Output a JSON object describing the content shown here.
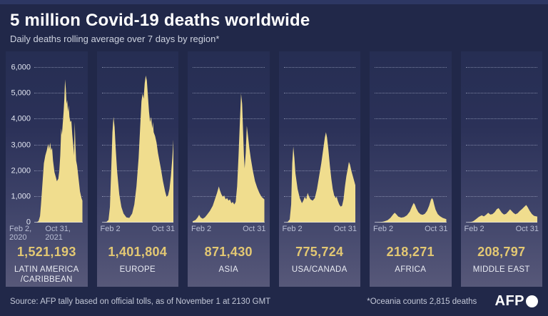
{
  "header": {
    "title": "5 million Covid-19 deaths worldwide",
    "subtitle": "Daily deaths rolling average over 7 days by region*"
  },
  "colors": {
    "background": "#212849",
    "panel_gradient_top": "#262e53",
    "panel_gradient_bottom": "#575879",
    "area_fill": "#f0dd8e",
    "total_gold": "#e3c873",
    "grid_dotted": "#c0c7e0",
    "text_light": "#e9ebf3"
  },
  "axis": {
    "y_ticks": [
      "6,000",
      "5,000",
      "4,000",
      "3,000",
      "2,000",
      "1,000",
      "0"
    ],
    "y_max": 6000
  },
  "footer": {
    "source": "Source: AFP tally based on official tolls, as of November 1 at 2130 GMT",
    "note": "*Oceania counts 2,815 deaths",
    "logo": "AFP"
  },
  "chart_data": {
    "type": "area",
    "title": "5 million Covid-19 deaths worldwide",
    "subtitle": "Daily deaths rolling average over 7 days by region",
    "ylabel": "Daily deaths (7-day rolling average)",
    "ylim": [
      0,
      6000
    ],
    "grid": "horizontal dotted lines every 1,000",
    "legend_position": "none",
    "panels": [
      {
        "region": "LATIN AMERICA /CARIBBEAN",
        "total": "1,521,193",
        "x_start": "Feb 2, 2020",
        "x_end": "Oct 31, 2021",
        "points": [
          [
            0,
            0
          ],
          [
            0.05,
            10
          ],
          [
            0.09,
            60
          ],
          [
            0.12,
            250
          ],
          [
            0.14,
            700
          ],
          [
            0.17,
            1500
          ],
          [
            0.2,
            2300
          ],
          [
            0.23,
            2600
          ],
          [
            0.26,
            2800
          ],
          [
            0.29,
            3050
          ],
          [
            0.31,
            2850
          ],
          [
            0.33,
            3100
          ],
          [
            0.35,
            2800
          ],
          [
            0.37,
            2900
          ],
          [
            0.39,
            2400
          ],
          [
            0.42,
            1950
          ],
          [
            0.45,
            1750
          ],
          [
            0.47,
            1600
          ],
          [
            0.5,
            1700
          ],
          [
            0.52,
            2000
          ],
          [
            0.54,
            2600
          ],
          [
            0.56,
            3650
          ],
          [
            0.575,
            3400
          ],
          [
            0.59,
            3800
          ],
          [
            0.61,
            4300
          ],
          [
            0.625,
            4800
          ],
          [
            0.64,
            5550
          ],
          [
            0.655,
            5200
          ],
          [
            0.67,
            4600
          ],
          [
            0.685,
            4750
          ],
          [
            0.7,
            4300
          ],
          [
            0.715,
            4550
          ],
          [
            0.73,
            4100
          ],
          [
            0.75,
            3900
          ],
          [
            0.77,
            3950
          ],
          [
            0.79,
            3400
          ],
          [
            0.81,
            3000
          ],
          [
            0.825,
            2600
          ],
          [
            0.84,
            3900
          ],
          [
            0.855,
            3000
          ],
          [
            0.87,
            2400
          ],
          [
            0.89,
            2200
          ],
          [
            0.92,
            1700
          ],
          [
            0.95,
            1200
          ],
          [
            0.98,
            950
          ],
          [
            1,
            850
          ]
        ]
      },
      {
        "region": "EUROPE",
        "total": "1,401,804",
        "x_start": "Feb 2",
        "x_end": "Oct 31",
        "points": [
          [
            0,
            0
          ],
          [
            0.06,
            20
          ],
          [
            0.09,
            100
          ],
          [
            0.11,
            600
          ],
          [
            0.13,
            2200
          ],
          [
            0.145,
            3500
          ],
          [
            0.16,
            4100
          ],
          [
            0.175,
            3700
          ],
          [
            0.19,
            2900
          ],
          [
            0.21,
            2000
          ],
          [
            0.24,
            1100
          ],
          [
            0.27,
            600
          ],
          [
            0.3,
            350
          ],
          [
            0.34,
            200
          ],
          [
            0.38,
            180
          ],
          [
            0.42,
            350
          ],
          [
            0.45,
            700
          ],
          [
            0.48,
            1400
          ],
          [
            0.51,
            2500
          ],
          [
            0.53,
            3600
          ],
          [
            0.55,
            4700
          ],
          [
            0.565,
            5000
          ],
          [
            0.58,
            4800
          ],
          [
            0.595,
            5400
          ],
          [
            0.61,
            5700
          ],
          [
            0.625,
            5500
          ],
          [
            0.64,
            4900
          ],
          [
            0.655,
            4300
          ],
          [
            0.67,
            3900
          ],
          [
            0.685,
            4100
          ],
          [
            0.7,
            3650
          ],
          [
            0.71,
            3900
          ],
          [
            0.72,
            3500
          ],
          [
            0.74,
            3350
          ],
          [
            0.76,
            3100
          ],
          [
            0.78,
            2700
          ],
          [
            0.8,
            2400
          ],
          [
            0.82,
            2100
          ],
          [
            0.85,
            1600
          ],
          [
            0.88,
            1200
          ],
          [
            0.9,
            1000
          ],
          [
            0.92,
            1050
          ],
          [
            0.94,
            1300
          ],
          [
            0.96,
            1800
          ],
          [
            0.98,
            2500
          ],
          [
            1,
            3450
          ]
        ]
      },
      {
        "region": "ASIA",
        "total": "871,430",
        "x_start": "Feb 2",
        "x_end": "Oct 31",
        "points": [
          [
            0,
            50
          ],
          [
            0.04,
            100
          ],
          [
            0.07,
            200
          ],
          [
            0.09,
            300
          ],
          [
            0.11,
            200
          ],
          [
            0.14,
            150
          ],
          [
            0.17,
            200
          ],
          [
            0.2,
            300
          ],
          [
            0.24,
            450
          ],
          [
            0.28,
            650
          ],
          [
            0.31,
            900
          ],
          [
            0.34,
            1150
          ],
          [
            0.365,
            1400
          ],
          [
            0.38,
            1250
          ],
          [
            0.4,
            1100
          ],
          [
            0.42,
            1000
          ],
          [
            0.44,
            1050
          ],
          [
            0.46,
            900
          ],
          [
            0.48,
            950
          ],
          [
            0.5,
            850
          ],
          [
            0.52,
            900
          ],
          [
            0.54,
            750
          ],
          [
            0.56,
            800
          ],
          [
            0.58,
            700
          ],
          [
            0.6,
            800
          ],
          [
            0.62,
            1400
          ],
          [
            0.64,
            2600
          ],
          [
            0.66,
            4000
          ],
          [
            0.675,
            5000
          ],
          [
            0.69,
            4600
          ],
          [
            0.7,
            3800
          ],
          [
            0.715,
            2600
          ],
          [
            0.725,
            2100
          ],
          [
            0.74,
            2700
          ],
          [
            0.755,
            3750
          ],
          [
            0.77,
            3400
          ],
          [
            0.79,
            2900
          ],
          [
            0.81,
            2500
          ],
          [
            0.84,
            2000
          ],
          [
            0.87,
            1600
          ],
          [
            0.9,
            1350
          ],
          [
            0.93,
            1150
          ],
          [
            0.96,
            1000
          ],
          [
            1,
            900
          ]
        ]
      },
      {
        "region": "USA/CANADA",
        "total": "775,724",
        "x_start": "Feb 2",
        "x_end": "Oct 31",
        "points": [
          [
            0,
            0
          ],
          [
            0.05,
            20
          ],
          [
            0.08,
            120
          ],
          [
            0.1,
            700
          ],
          [
            0.115,
            2300
          ],
          [
            0.13,
            2950
          ],
          [
            0.145,
            2500
          ],
          [
            0.16,
            1900
          ],
          [
            0.19,
            1300
          ],
          [
            0.22,
            950
          ],
          [
            0.25,
            750
          ],
          [
            0.27,
            850
          ],
          [
            0.29,
            1000
          ],
          [
            0.31,
            900
          ],
          [
            0.33,
            1150
          ],
          [
            0.35,
            1000
          ],
          [
            0.37,
            900
          ],
          [
            0.4,
            850
          ],
          [
            0.43,
            950
          ],
          [
            0.46,
            1300
          ],
          [
            0.49,
            1800
          ],
          [
            0.52,
            2300
          ],
          [
            0.55,
            2900
          ],
          [
            0.57,
            3300
          ],
          [
            0.585,
            3500
          ],
          [
            0.6,
            3300
          ],
          [
            0.62,
            2800
          ],
          [
            0.64,
            2200
          ],
          [
            0.66,
            1700
          ],
          [
            0.68,
            1300
          ],
          [
            0.7,
            1050
          ],
          [
            0.72,
            950
          ],
          [
            0.735,
            1000
          ],
          [
            0.75,
            850
          ],
          [
            0.77,
            700
          ],
          [
            0.79,
            620
          ],
          [
            0.81,
            650
          ],
          [
            0.83,
            900
          ],
          [
            0.85,
            1400
          ],
          [
            0.87,
            1800
          ],
          [
            0.89,
            2100
          ],
          [
            0.905,
            2350
          ],
          [
            0.92,
            2250
          ],
          [
            0.94,
            2000
          ],
          [
            0.96,
            1800
          ],
          [
            0.98,
            1600
          ],
          [
            1,
            1400
          ]
        ]
      },
      {
        "region": "AFRICA",
        "total": "218,271",
        "x_start": "Feb 2",
        "x_end": "Oct 31",
        "points": [
          [
            0,
            0
          ],
          [
            0.08,
            15
          ],
          [
            0.13,
            40
          ],
          [
            0.18,
            90
          ],
          [
            0.22,
            180
          ],
          [
            0.26,
            320
          ],
          [
            0.28,
            380
          ],
          [
            0.3,
            330
          ],
          [
            0.33,
            230
          ],
          [
            0.37,
            190
          ],
          [
            0.41,
            210
          ],
          [
            0.45,
            280
          ],
          [
            0.49,
            420
          ],
          [
            0.52,
            620
          ],
          [
            0.545,
            760
          ],
          [
            0.56,
            700
          ],
          [
            0.58,
            560
          ],
          [
            0.61,
            400
          ],
          [
            0.64,
            320
          ],
          [
            0.67,
            300
          ],
          [
            0.7,
            340
          ],
          [
            0.73,
            450
          ],
          [
            0.76,
            650
          ],
          [
            0.785,
            880
          ],
          [
            0.8,
            950
          ],
          [
            0.815,
            880
          ],
          [
            0.83,
            700
          ],
          [
            0.85,
            500
          ],
          [
            0.88,
            330
          ],
          [
            0.91,
            250
          ],
          [
            0.95,
            180
          ],
          [
            1,
            130
          ]
        ]
      },
      {
        "region": "MIDDLE EAST",
        "total": "208,797",
        "x_start": "Feb 2",
        "x_end": "Oct 31",
        "points": [
          [
            0,
            0
          ],
          [
            0.06,
            15
          ],
          [
            0.1,
            50
          ],
          [
            0.14,
            130
          ],
          [
            0.18,
            220
          ],
          [
            0.22,
            280
          ],
          [
            0.25,
            240
          ],
          [
            0.28,
            300
          ],
          [
            0.31,
            380
          ],
          [
            0.34,
            310
          ],
          [
            0.37,
            330
          ],
          [
            0.4,
            400
          ],
          [
            0.43,
            520
          ],
          [
            0.455,
            560
          ],
          [
            0.47,
            500
          ],
          [
            0.5,
            380
          ],
          [
            0.53,
            310
          ],
          [
            0.56,
            340
          ],
          [
            0.59,
            430
          ],
          [
            0.615,
            510
          ],
          [
            0.63,
            470
          ],
          [
            0.66,
            380
          ],
          [
            0.69,
            320
          ],
          [
            0.72,
            360
          ],
          [
            0.75,
            450
          ],
          [
            0.78,
            520
          ],
          [
            0.81,
            600
          ],
          [
            0.84,
            680
          ],
          [
            0.86,
            600
          ],
          [
            0.89,
            450
          ],
          [
            0.92,
            330
          ],
          [
            0.95,
            260
          ],
          [
            1,
            230
          ]
        ]
      }
    ]
  }
}
